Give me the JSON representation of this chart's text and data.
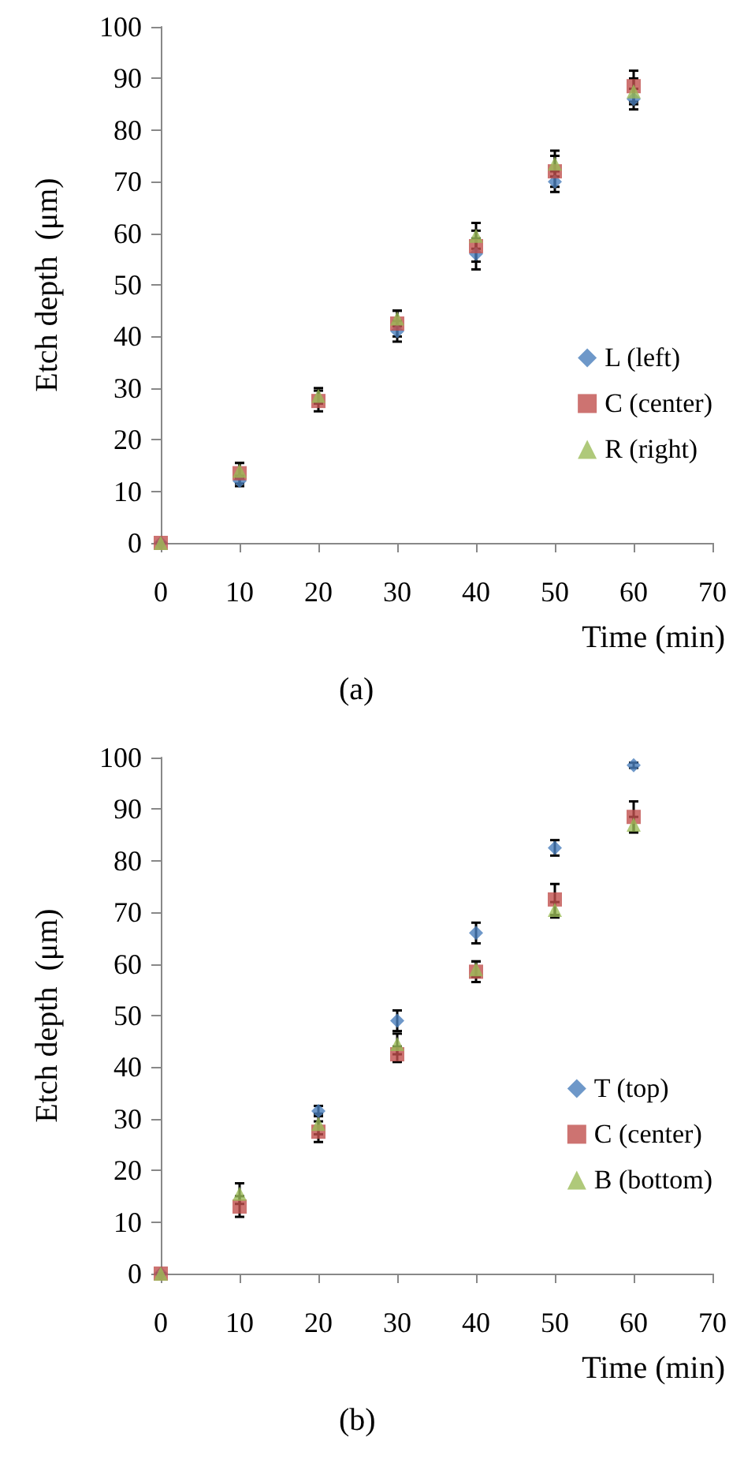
{
  "chart_data": [
    {
      "type": "scatter",
      "xlabel": "Time (min)",
      "ylabel": "Etch depth  (μm)",
      "annotations": [
        "(a)"
      ],
      "x": [
        0,
        10,
        20,
        30,
        40,
        50,
        60
      ],
      "xlim": [
        0,
        70
      ],
      "xticks": [
        0,
        10,
        20,
        30,
        40,
        50,
        60,
        70
      ],
      "ylim": [
        0,
        100
      ],
      "yticks": [
        0,
        10,
        20,
        30,
        40,
        50,
        60,
        70,
        80,
        90,
        100
      ],
      "grid": false,
      "legend": "right",
      "series": [
        {
          "name": "L (left)",
          "color": "#4a7ebb",
          "marker": "diamond",
          "values": [
            0,
            12,
            null,
            41,
            56,
            70,
            86
          ],
          "errors": [
            0,
            1,
            null,
            2,
            3,
            2,
            2
          ]
        },
        {
          "name": "C (center)",
          "color": "#c0504d",
          "marker": "square",
          "values": [
            0,
            13.5,
            27.5,
            42.5,
            57.5,
            72,
            88.5
          ],
          "errors": [
            0,
            2,
            2,
            2.5,
            3,
            3,
            3
          ]
        },
        {
          "name": "R (right)",
          "color": "#9bbb59",
          "marker": "triangle",
          "values": [
            0,
            14,
            28.5,
            43.5,
            59.5,
            73.5,
            87.5
          ],
          "errors": [
            0,
            1.5,
            1.5,
            1.5,
            2.5,
            2.5,
            2.5
          ]
        }
      ]
    },
    {
      "type": "scatter",
      "xlabel": "Time (min)",
      "ylabel": "Etch depth  (μm)",
      "annotations": [
        "(b)"
      ],
      "x": [
        0,
        10,
        20,
        30,
        40,
        50,
        60
      ],
      "xlim": [
        0,
        70
      ],
      "xticks": [
        0,
        10,
        20,
        30,
        40,
        50,
        60,
        70
      ],
      "ylim": [
        0,
        100
      ],
      "yticks": [
        0,
        10,
        20,
        30,
        40,
        50,
        60,
        70,
        80,
        90,
        100
      ],
      "grid": false,
      "legend": "right",
      "series": [
        {
          "name": "T (top)",
          "color": "#4a7ebb",
          "marker": "diamond",
          "values": [
            0,
            null,
            31.5,
            49,
            66,
            82.5,
            98.5
          ],
          "errors": [
            0,
            null,
            1,
            2,
            2,
            1.5,
            0.5
          ]
        },
        {
          "name": "C (center)",
          "color": "#c0504d",
          "marker": "square",
          "values": [
            0,
            13,
            27.5,
            42.5,
            58.5,
            72.5,
            88.5
          ],
          "errors": [
            0,
            2,
            2,
            1.5,
            2,
            3,
            3
          ]
        },
        {
          "name": "B (bottom)",
          "color": "#9bbb59",
          "marker": "triangle",
          "values": [
            0,
            15.5,
            29,
            44.5,
            59,
            70.5,
            87
          ],
          "errors": [
            0,
            2,
            2,
            2,
            1.5,
            1.5,
            1.5
          ]
        }
      ]
    }
  ]
}
